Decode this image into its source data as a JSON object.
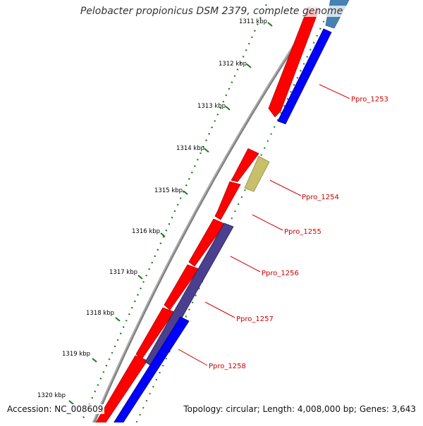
{
  "title": "Pelobacter propionicus DSM 2379, complete genome",
  "footer": {
    "accession": "Accession: NC_008609",
    "summary": "Topology: circular; Length: 4,008,000 bp; Genes: 3,643"
  },
  "ticks": [
    "1311 kbp",
    "1312 kbp",
    "1313 kbp",
    "1314 kbp",
    "1315 kbp",
    "1316 kbp",
    "1317 kbp",
    "1318 kbp",
    "1319 kbp",
    "1320 kbp"
  ],
  "gene_labels": [
    "Ppro_1253",
    "Ppro_1254",
    "Ppro_1255",
    "Ppro_1256",
    "Ppro_1257",
    "Ppro_1258"
  ],
  "colors": {
    "forward_cds": "#ff0000",
    "reverse_cds": "#0000ff",
    "khaki_feature": "#c8bf6a",
    "purple_feature": "#4b3f8f",
    "steel_feature": "#4682b4",
    "backbone": "#808080",
    "tick_green": "#1a7a1a",
    "label_red": "#cc0000"
  }
}
